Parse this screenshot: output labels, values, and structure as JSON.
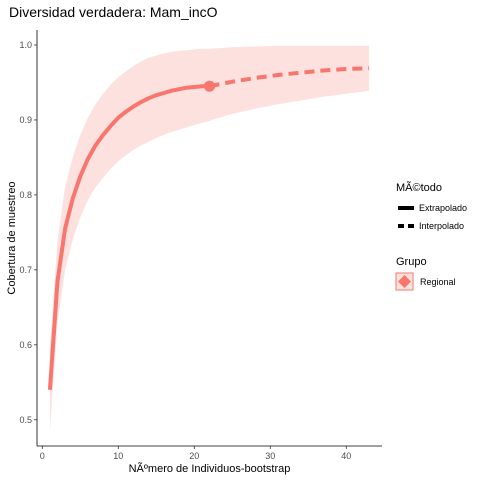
{
  "chart_data": {
    "type": "line",
    "title": "Diversidad verdadera: Mam_incO",
    "xlabel": "NÃºmero de Individuos-bootstrap",
    "ylabel": "Cobertura de muestreo",
    "xlim": [
      -0.7,
      44.7
    ],
    "ylim": [
      0.465,
      1.02
    ],
    "x_ticks": [
      0,
      10,
      20,
      30,
      40
    ],
    "y_ticks": [
      0.5,
      0.6,
      0.7,
      0.8,
      0.9,
      1.0
    ],
    "x_tick_labels": [
      "0",
      "10",
      "20",
      "30",
      "40"
    ],
    "y_tick_labels": [
      "0.5",
      "0.6",
      "0.7",
      "0.8",
      "0.9",
      "1.0"
    ],
    "grid": false,
    "legend_position": "right",
    "color": "#F8766D",
    "band_color": "#FDE1DF",
    "observed_point": {
      "x": 22,
      "y": 0.945
    },
    "series": [
      {
        "name": "Regional",
        "method": "Interpolado",
        "x": [
          1,
          2,
          3,
          4,
          5,
          6,
          7,
          8,
          9,
          10,
          11,
          12,
          13,
          14,
          15,
          16,
          17,
          18,
          19,
          20,
          21,
          22
        ],
        "y": [
          0.54,
          0.685,
          0.755,
          0.795,
          0.825,
          0.848,
          0.866,
          0.88,
          0.892,
          0.903,
          0.911,
          0.918,
          0.924,
          0.929,
          0.933,
          0.936,
          0.939,
          0.941,
          0.943,
          0.944,
          0.945,
          0.945
        ],
        "lower": [
          0.485,
          0.63,
          0.7,
          0.74,
          0.77,
          0.793,
          0.81,
          0.823,
          0.835,
          0.845,
          0.853,
          0.86,
          0.866,
          0.871,
          0.876,
          0.88,
          0.884,
          0.887,
          0.89,
          0.893,
          0.896,
          0.899
        ],
        "upper": [
          0.595,
          0.74,
          0.81,
          0.85,
          0.88,
          0.903,
          0.921,
          0.935,
          0.947,
          0.957,
          0.965,
          0.972,
          0.978,
          0.983,
          0.986,
          0.989,
          0.991,
          0.992,
          0.993,
          0.994,
          0.995,
          0.995
        ]
      },
      {
        "name": "Regional",
        "method": "Extrapolado",
        "x": [
          22,
          25,
          28,
          31,
          34,
          37,
          40,
          43
        ],
        "y": [
          0.945,
          0.951,
          0.956,
          0.96,
          0.963,
          0.966,
          0.968,
          0.969
        ],
        "lower": [
          0.899,
          0.908,
          0.915,
          0.921,
          0.926,
          0.931,
          0.935,
          0.939
        ],
        "upper": [
          0.995,
          0.997,
          0.998,
          0.999,
          0.999,
          0.999,
          0.999,
          0.999
        ]
      }
    ]
  },
  "legend": {
    "method_title": "MÃ©todo",
    "method_items": [
      {
        "label": "Extrapolado",
        "style": "solid"
      },
      {
        "label": "Interpolado",
        "style": "dashed"
      }
    ],
    "group_title": "Grupo",
    "group_items": [
      {
        "label": "Regional",
        "color": "#F8766D"
      }
    ]
  }
}
